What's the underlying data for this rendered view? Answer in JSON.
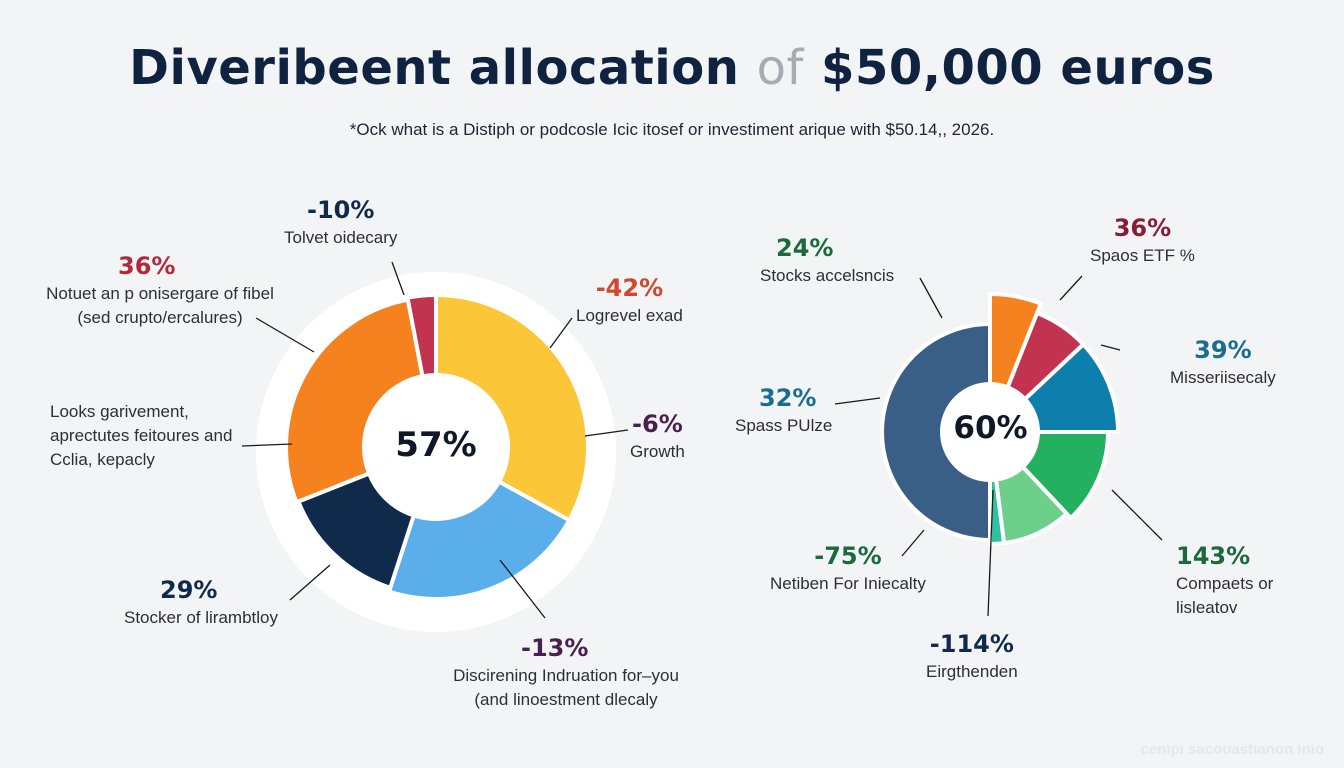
{
  "title": {
    "part1": "Diveribeent allocation ",
    "part2": "of",
    "part3": " $50,000 euros"
  },
  "subtitle": "*Ock what is a Distiph or podcosle Icic itosef or investiment arique with $50.14,, 2026.",
  "footer": "cenipi sacouastianon inio",
  "chart_data": [
    {
      "type": "pie",
      "donut": true,
      "center_label": "57%",
      "slices": [
        {
          "label": "Logrevel exad",
          "value_label": "-42%",
          "share_pct": 33,
          "color": "#fbc638",
          "label_color": "#d2472b"
        },
        {
          "label": "Growth",
          "value_label": "-6%",
          "share_pct": 0,
          "color": "#fbc638",
          "label_color": "#4a1f4f"
        },
        {
          "label": "Discirening Indruation for–you (and linoestment dlecaly",
          "value_label": "-13%",
          "share_pct": 22,
          "color": "#5aaeea",
          "label_color": "#4a1f4f"
        },
        {
          "label": "Stocker of lirambtloy",
          "value_label": "29%",
          "share_pct": 14,
          "color": "#0f2a4a",
          "label_color": "#0f2a4a"
        },
        {
          "label": "Looks garivement, aprectutes feitoures and Cclia, kepacly",
          "value_label": "",
          "share_pct": 28,
          "color": "#f6821f",
          "label_color": "#2a2f38"
        },
        {
          "label": "Notuet an p onisergare of fibel (sed crupto/ercalures)",
          "value_label": "36%",
          "share_pct": 0,
          "color": "#f6821f",
          "label_color": "#b02a3a"
        },
        {
          "label": "Tolvet oidecary",
          "value_label": "-10%",
          "share_pct": 3,
          "color": "#c2334f",
          "label_color": "#0f2a4a"
        }
      ]
    },
    {
      "type": "pie",
      "donut": true,
      "center_label": "60%",
      "slices": [
        {
          "label": "Spaos ETF %",
          "value_label": "36%",
          "share_pct": 6,
          "color": "#f6821f",
          "label_color": "#8a1c38"
        },
        {
          "label": "",
          "value_label": "",
          "share_pct": 7,
          "color": "#c2334f",
          "label_color": "#8a1c38"
        },
        {
          "label": "Misseriisecaly",
          "value_label": "39%",
          "share_pct": 12,
          "color": "#0e7fad",
          "label_color": "#1a6d8e"
        },
        {
          "label": "Compaets or lisleatov",
          "value_label": "143%",
          "share_pct": 13,
          "color": "#23b060",
          "label_color": "#1b6a3c"
        },
        {
          "label": "",
          "value_label": "",
          "share_pct": 10,
          "color": "#6dd08a",
          "label_color": "#1b6a3c"
        },
        {
          "label": "Eirgthenden",
          "value_label": "-114%",
          "share_pct": 2,
          "color": "#2fc0a0",
          "label_color": "#0f2a4a"
        },
        {
          "label": "Netiben For Iniecalty",
          "value_label": "-75%",
          "share_pct": 0,
          "color": "#3a5f86",
          "label_color": "#1b6a3c"
        },
        {
          "label": "Spass PUlze",
          "value_label": "32%",
          "share_pct": 0,
          "color": "#3a5f86",
          "label_color": "#1a6d8e"
        },
        {
          "label": "Stocks accelsncis",
          "value_label": "24%",
          "share_pct": 50,
          "color": "#3a5f86",
          "label_color": "#1b6a3c"
        }
      ]
    }
  ]
}
